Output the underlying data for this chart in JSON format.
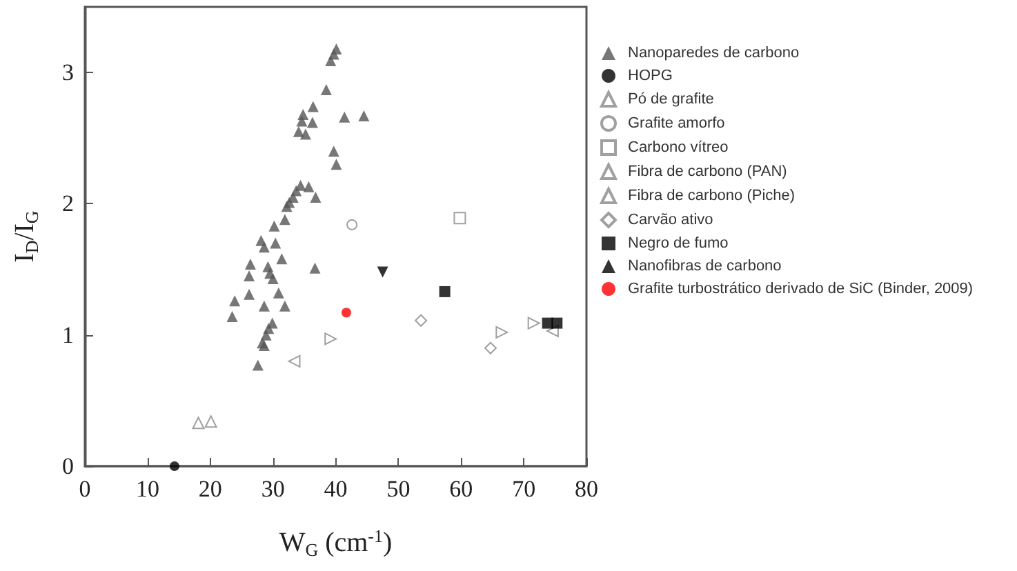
{
  "chart_data": {
    "type": "scatter",
    "xlabel": "W$_{G}$ (cm$^{-1}$)",
    "ylabel": "I$_{D}$/I$_{G}$",
    "xlim": [
      0,
      80
    ],
    "xticks": [
      0,
      10,
      20,
      30,
      40,
      50,
      60,
      70,
      80
    ],
    "ylim": [
      0,
      3.5
    ],
    "yticks": [
      0,
      1,
      2,
      3
    ],
    "grid": false,
    "legend": "right",
    "series": [
      {
        "name": "Nanoparedes de carbono",
        "color": "#555555",
        "marker": "triangle",
        "x": [
          40.1,
          39.7,
          39.2,
          38.5,
          36.4,
          34.8,
          34.6,
          36.3,
          34.1,
          35.2,
          41.4,
          44.5,
          39.7,
          40.1,
          34.4,
          35.7,
          33.7,
          33.2,
          32.6,
          32.2,
          36.8,
          31.9,
          30.2,
          28.1,
          30.4,
          28.6,
          31.4,
          26.4,
          26.2,
          29.2,
          29.5,
          30.0,
          36.7,
          23.9,
          26.2,
          30.9,
          31.9,
          28.6,
          23.5,
          29.9,
          29.3,
          28.9,
          28.3,
          28.6,
          27.6
        ],
        "values": [
          3.18,
          3.14,
          3.09,
          2.87,
          2.74,
          2.68,
          2.63,
          2.62,
          2.55,
          2.53,
          2.66,
          2.67,
          2.4,
          2.3,
          2.14,
          2.13,
          2.1,
          2.05,
          2.01,
          1.98,
          2.05,
          1.88,
          1.83,
          1.72,
          1.7,
          1.67,
          1.58,
          1.54,
          1.45,
          1.52,
          1.47,
          1.43,
          1.51,
          1.26,
          1.31,
          1.32,
          1.22,
          1.22,
          1.14,
          1.09,
          1.05,
          1.0,
          0.94,
          0.92,
          0.77
        ]
      },
      {
        "name": "HOPG",
        "color": "#000000",
        "marker": "circle",
        "x": [
          14.3
        ],
        "values": [
          0
        ]
      },
      {
        "name": "Pó de grafite",
        "color": "#888888",
        "marker": "triangle",
        "x": [
          18.1,
          20.1
        ],
        "values": [
          0.33,
          0.34
        ]
      },
      {
        "name": "Grafite amorfo",
        "color": "#888888",
        "marker": "circle",
        "x": [
          42.6
        ],
        "values": [
          1.84
        ]
      },
      {
        "name": "Carbono vítreo",
        "color": "#888888",
        "marker": "square",
        "x": [
          59.8
        ],
        "values": [
          1.89
        ]
      },
      {
        "name": "Fibra de carbono (PAN)",
        "color": "#888888",
        "marker": "triangle",
        "x": [
          39.2,
          66.5,
          71.6
        ],
        "values": [
          0.97,
          1.02,
          1.09
        ]
      },
      {
        "name": "Fibra de carbono (Piche)",
        "color": "#888888",
        "marker": "triangle",
        "x": [
          33.4,
          74.6
        ],
        "values": [
          0.8,
          1.03
        ]
      },
      {
        "name": "Carvão ativo",
        "color": "#888888",
        "marker": "diamond",
        "x": [
          53.6,
          64.7
        ],
        "values": [
          1.11,
          0.9
        ]
      },
      {
        "name": "Negro de fumo",
        "color": "#000000",
        "marker": "square",
        "x": [
          57.4,
          73.8,
          75.3
        ],
        "values": [
          1.33,
          1.09,
          1.09
        ]
      },
      {
        "name": "Nanofibras de carbono",
        "color": "#000000",
        "marker": "triangle",
        "x": [
          47.5
        ],
        "values": [
          1.48
        ]
      },
      {
        "name": "Grafite turbostrático derivado de SiC (Binder, 2009)",
        "color": "#ff0000",
        "marker": "circle",
        "x": [
          41.7
        ],
        "values": [
          1.17
        ]
      }
    ]
  }
}
